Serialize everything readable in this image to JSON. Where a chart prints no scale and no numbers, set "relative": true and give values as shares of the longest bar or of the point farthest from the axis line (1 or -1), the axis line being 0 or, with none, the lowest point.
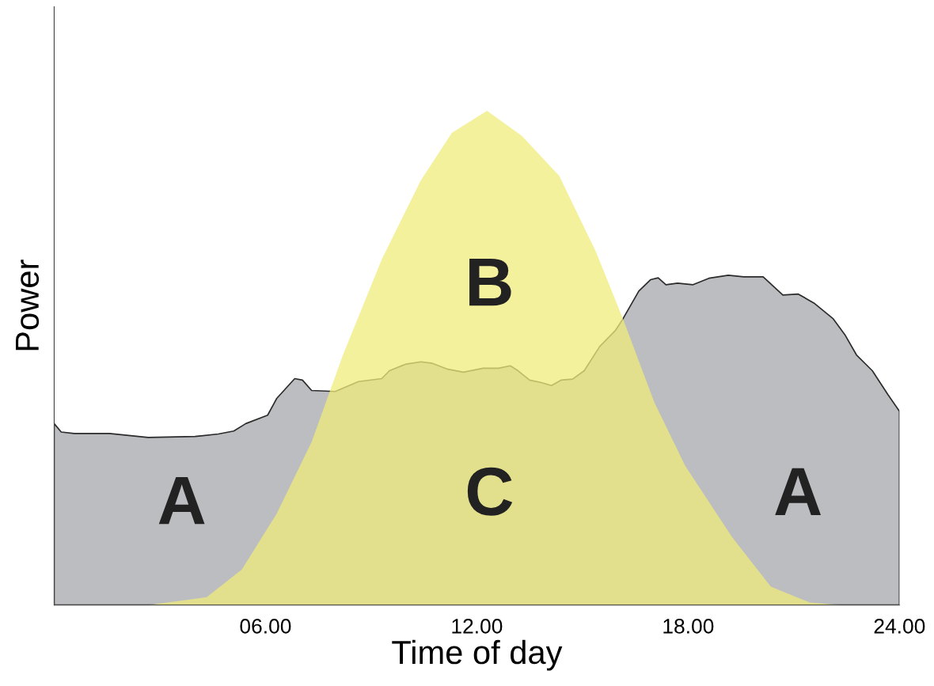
{
  "chart_data": {
    "type": "area",
    "relative": true,
    "xlabel": "Time of day",
    "ylabel": "Power",
    "xlim": [
      0,
      24
    ],
    "xticks": [
      {
        "value": 6,
        "label": "06.00"
      },
      {
        "value": 12,
        "label": "12.00"
      },
      {
        "value": 18,
        "label": "18.00"
      },
      {
        "value": 24,
        "label": "24.00"
      }
    ],
    "grid": false,
    "legend": false,
    "series": [
      {
        "color": "#bcbdc1",
        "line_style": "solid",
        "x": [
          0,
          0.2,
          0.57,
          1.57,
          2.67,
          4.0,
          4.66,
          5.1,
          5.44,
          6.06,
          6.32,
          6.83,
          7.05,
          7.31,
          7.98,
          8.64,
          9.3,
          9.52,
          9.97,
          10.41,
          10.74,
          11.18,
          11.62,
          12.18,
          12.62,
          12.95,
          13.17,
          13.5,
          13.83,
          14.12,
          14.39,
          14.72,
          15.05,
          15.49,
          15.93,
          16.15,
          16.6,
          16.93,
          17.15,
          17.37,
          17.7,
          18.14,
          18.59,
          19.14,
          19.58,
          20.13,
          20.69,
          21.13,
          21.57,
          22.12,
          22.45,
          22.78,
          23.23,
          23.67,
          24
        ],
        "values": [
          0.367,
          0.35,
          0.347,
          0.347,
          0.339,
          0.341,
          0.346,
          0.352,
          0.367,
          0.384,
          0.418,
          0.458,
          0.455,
          0.434,
          0.432,
          0.452,
          0.458,
          0.474,
          0.487,
          0.492,
          0.489,
          0.477,
          0.471,
          0.479,
          0.479,
          0.484,
          0.474,
          0.455,
          0.45,
          0.444,
          0.455,
          0.457,
          0.474,
          0.523,
          0.555,
          0.579,
          0.635,
          0.658,
          0.662,
          0.648,
          0.651,
          0.648,
          0.661,
          0.667,
          0.664,
          0.664,
          0.627,
          0.629,
          0.611,
          0.579,
          0.547,
          0.506,
          0.474,
          0.426,
          0.392
        ]
      },
      {
        "color": "#efec7a",
        "x": [
          0,
          2.67,
          4.33,
          5.33,
          6.32,
          7.31,
          8.2,
          9.3,
          10.41,
          11.29,
          12.29,
          13.28,
          14.34,
          15.38,
          16.15,
          17.04,
          17.92,
          19.25,
          20.35,
          21.46,
          22.34,
          24
        ],
        "values": [
          0,
          0,
          0.016,
          0.072,
          0.185,
          0.33,
          0.506,
          0.699,
          0.859,
          0.955,
          1,
          0.949,
          0.868,
          0.715,
          0.579,
          0.41,
          0.281,
          0.137,
          0.037,
          0.005,
          0,
          0
        ]
      }
    ],
    "annotations": [
      "A",
      "B",
      "C",
      "A"
    ]
  }
}
